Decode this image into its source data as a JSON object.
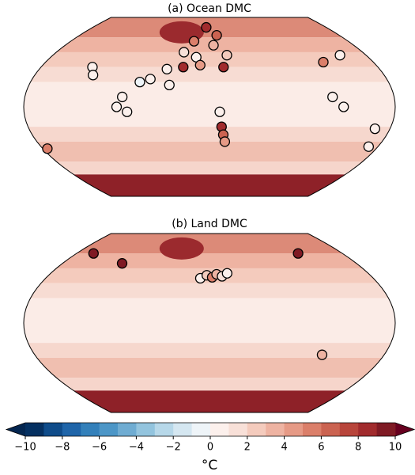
{
  "maps": [
    {
      "title": "(a) Ocean DMC",
      "sites": [
        {
          "lon": -5,
          "lat": 80,
          "value": 8
        },
        {
          "lon": 10,
          "lat": 72,
          "value": 6
        },
        {
          "lon": -20,
          "lat": 66,
          "value": 5
        },
        {
          "lon": 5,
          "lat": 62,
          "value": 3
        },
        {
          "lon": -30,
          "lat": 55,
          "value": 1
        },
        {
          "lon": -15,
          "lat": 50,
          "value": 0
        },
        {
          "lon": 20,
          "lat": 52,
          "value": 2
        },
        {
          "lon": -28,
          "lat": 40,
          "value": 8
        },
        {
          "lon": -10,
          "lat": 42,
          "value": 4
        },
        {
          "lon": 15,
          "lat": 40,
          "value": 8
        },
        {
          "lon": -45,
          "lat": 38,
          "value": 0
        },
        {
          "lon": -125,
          "lat": 40,
          "value": 0
        },
        {
          "lon": -120,
          "lat": 32,
          "value": 0
        },
        {
          "lon": -70,
          "lat": 25,
          "value": -1
        },
        {
          "lon": -60,
          "lat": 28,
          "value": 0
        },
        {
          "lon": -85,
          "lat": 10,
          "value": 0
        },
        {
          "lon": -90,
          "lat": 0,
          "value": 0
        },
        {
          "lon": -80,
          "lat": -5,
          "value": 0
        },
        {
          "lon": -40,
          "lat": 22,
          "value": 0
        },
        {
          "lon": 10,
          "lat": -5,
          "value": 0
        },
        {
          "lon": 12,
          "lat": -20,
          "value": 8
        },
        {
          "lon": 14,
          "lat": -28,
          "value": 6
        },
        {
          "lon": 16,
          "lat": -35,
          "value": 4
        },
        {
          "lon": 125,
          "lat": 45,
          "value": 5
        },
        {
          "lon": 150,
          "lat": 52,
          "value": 0
        },
        {
          "lon": 120,
          "lat": 10,
          "value": 0
        },
        {
          "lon": 130,
          "lat": 0,
          "value": 0
        },
        {
          "lon": 165,
          "lat": -22,
          "value": 0
        },
        {
          "lon": 170,
          "lat": -40,
          "value": 0
        },
        {
          "lon": -175,
          "lat": -42,
          "value": 5
        }
      ]
    },
    {
      "title": "(b) Land DMC",
      "sites": [
        {
          "lon": -157,
          "lat": 70,
          "value": 9
        },
        {
          "lon": -107,
          "lat": 60,
          "value": 9
        },
        {
          "lon": 120,
          "lat": 70,
          "value": 9
        },
        {
          "lon": -10,
          "lat": 45,
          "value": 0
        },
        {
          "lon": -3,
          "lat": 48,
          "value": 2
        },
        {
          "lon": 3,
          "lat": 46,
          "value": 5
        },
        {
          "lon": 8,
          "lat": 49,
          "value": 3
        },
        {
          "lon": 14,
          "lat": 47,
          "value": 1
        },
        {
          "lon": 20,
          "lat": 50,
          "value": 0
        },
        {
          "lon": 116,
          "lat": -32,
          "value": 3
        }
      ]
    }
  ],
  "colorbar": {
    "label": "°C",
    "lim": [
      -10,
      10
    ],
    "ticks": [
      {
        "value": -10,
        "label": "−10"
      },
      {
        "value": -8,
        "label": "−8"
      },
      {
        "value": -6,
        "label": "−6"
      },
      {
        "value": -4,
        "label": "−4"
      },
      {
        "value": -2,
        "label": "−2"
      },
      0,
      2,
      4,
      6,
      8,
      10
    ],
    "colors": [
      "#053061",
      "#0f4c8a",
      "#1f65a9",
      "#3380ba",
      "#4c96c7",
      "#6facd2",
      "#93c4de",
      "#b7d8e9",
      "#d5e7f1",
      "#eef4f8",
      "#fcf0ec",
      "#f8e0d8",
      "#f4cbbd",
      "#eeb3a2",
      "#e69a86",
      "#db7f6a",
      "#cb6351",
      "#b8453b",
      "#a12b2d",
      "#7f1a24"
    ],
    "under": "#042650",
    "over": "#67001f"
  }
}
